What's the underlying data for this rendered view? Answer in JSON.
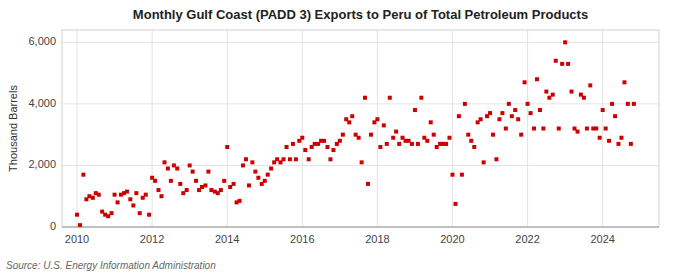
{
  "chart_data": {
    "type": "scatter",
    "title": "Monthly Gulf Coast (PADD 3) Exports to Peru of Total Petroleum Products",
    "ylabel": "Thousand Barrels",
    "source": "Source: U.S. Energy Information Administration",
    "color": "#cc0000",
    "marker": "square",
    "grid": true,
    "xlim": [
      2009.6,
      2025.5
    ],
    "xticks": [
      2010,
      2012,
      2014,
      2016,
      2018,
      2020,
      2022,
      2024
    ],
    "ylim": [
      0,
      6400
    ],
    "yticks": [
      0,
      {
        "value": 2000,
        "label": "2,000"
      },
      {
        "value": 4000,
        "label": "4,000"
      },
      {
        "value": 6000,
        "label": "6,000"
      }
    ],
    "x": [
      2010.0,
      2010.08,
      2010.17,
      2010.25,
      2010.33,
      2010.42,
      2010.5,
      2010.58,
      2010.67,
      2010.75,
      2010.83,
      2010.92,
      2011.0,
      2011.08,
      2011.17,
      2011.25,
      2011.33,
      2011.42,
      2011.5,
      2011.58,
      2011.67,
      2011.75,
      2011.83,
      2011.92,
      2012.0,
      2012.08,
      2012.17,
      2012.25,
      2012.33,
      2012.42,
      2012.5,
      2012.58,
      2012.67,
      2012.75,
      2012.83,
      2012.92,
      2013.0,
      2013.08,
      2013.17,
      2013.25,
      2013.33,
      2013.42,
      2013.5,
      2013.58,
      2013.67,
      2013.75,
      2013.83,
      2013.92,
      2014.0,
      2014.08,
      2014.17,
      2014.25,
      2014.33,
      2014.42,
      2014.5,
      2014.58,
      2014.67,
      2014.75,
      2014.83,
      2014.92,
      2015.0,
      2015.08,
      2015.17,
      2015.25,
      2015.33,
      2015.42,
      2015.5,
      2015.58,
      2015.67,
      2015.75,
      2015.83,
      2015.92,
      2016.0,
      2016.08,
      2016.17,
      2016.25,
      2016.33,
      2016.42,
      2016.5,
      2016.58,
      2016.67,
      2016.75,
      2016.83,
      2016.92,
      2017.0,
      2017.08,
      2017.17,
      2017.25,
      2017.33,
      2017.42,
      2017.5,
      2017.58,
      2017.67,
      2017.75,
      2017.83,
      2017.92,
      2018.0,
      2018.08,
      2018.17,
      2018.25,
      2018.33,
      2018.42,
      2018.5,
      2018.58,
      2018.67,
      2018.75,
      2018.83,
      2018.92,
      2019.0,
      2019.08,
      2019.17,
      2019.25,
      2019.33,
      2019.42,
      2019.5,
      2019.58,
      2019.67,
      2019.75,
      2019.83,
      2019.92,
      2020.0,
      2020.08,
      2020.17,
      2020.25,
      2020.33,
      2020.42,
      2020.5,
      2020.58,
      2020.67,
      2020.75,
      2020.83,
      2020.92,
      2021.0,
      2021.08,
      2021.17,
      2021.25,
      2021.33,
      2021.42,
      2021.5,
      2021.58,
      2021.67,
      2021.75,
      2021.83,
      2021.92,
      2022.0,
      2022.08,
      2022.17,
      2022.25,
      2022.33,
      2022.42,
      2022.5,
      2022.58,
      2022.67,
      2022.75,
      2022.83,
      2022.92,
      2023.0,
      2023.08,
      2023.17,
      2023.25,
      2023.33,
      2023.42,
      2023.5,
      2023.58,
      2023.67,
      2023.75,
      2023.83,
      2023.92,
      2024.0,
      2024.08,
      2024.17,
      2024.25,
      2024.33,
      2024.42,
      2024.5,
      2024.58,
      2024.67,
      2024.75,
      2024.83
    ],
    "values": [
      400,
      60,
      1700,
      900,
      1000,
      950,
      1100,
      1050,
      500,
      400,
      350,
      450,
      1050,
      800,
      1050,
      1100,
      1150,
      900,
      700,
      1100,
      450,
      950,
      1050,
      400,
      1600,
      1500,
      1200,
      1000,
      2100,
      1900,
      1500,
      2000,
      1900,
      1400,
      1100,
      1200,
      2000,
      1800,
      1500,
      1200,
      1300,
      1350,
      1800,
      1200,
      1150,
      1100,
      1200,
      1500,
      2600,
      1300,
      1400,
      800,
      850,
      2000,
      2200,
      1350,
      2100,
      1800,
      1600,
      1400,
      1500,
      1700,
      1900,
      2100,
      2200,
      2100,
      2200,
      2600,
      2200,
      2700,
      2200,
      2800,
      2900,
      2500,
      2200,
      2600,
      2700,
      2700,
      2800,
      2800,
      2600,
      2200,
      2500,
      2700,
      2800,
      3000,
      3500,
      3400,
      3600,
      3000,
      2900,
      2100,
      4200,
      1400,
      3000,
      3400,
      3500,
      2600,
      3300,
      2700,
      4200,
      2900,
      3100,
      2700,
      2900,
      2800,
      2800,
      2700,
      3800,
      2700,
      4200,
      2900,
      2800,
      3400,
      3000,
      2600,
      2700,
      2700,
      2700,
      2900,
      1700,
      750,
      3600,
      1700,
      4000,
      3000,
      2800,
      2600,
      3400,
      3500,
      2100,
      3600,
      3700,
      3000,
      2200,
      3500,
      3700,
      3200,
      4000,
      3600,
      3800,
      3500,
      3000,
      4700,
      4000,
      3700,
      3200,
      4800,
      3800,
      3200,
      4400,
      4200,
      4300,
      5400,
      3200,
      5300,
      6000,
      5300,
      4400,
      3200,
      3100,
      4300,
      4200,
      3200,
      4600,
      3200,
      3200,
      2900,
      3800,
      3200,
      2800,
      4000,
      3600,
      2700,
      2900,
      4700,
      4000,
      2700,
      4000
    ]
  }
}
